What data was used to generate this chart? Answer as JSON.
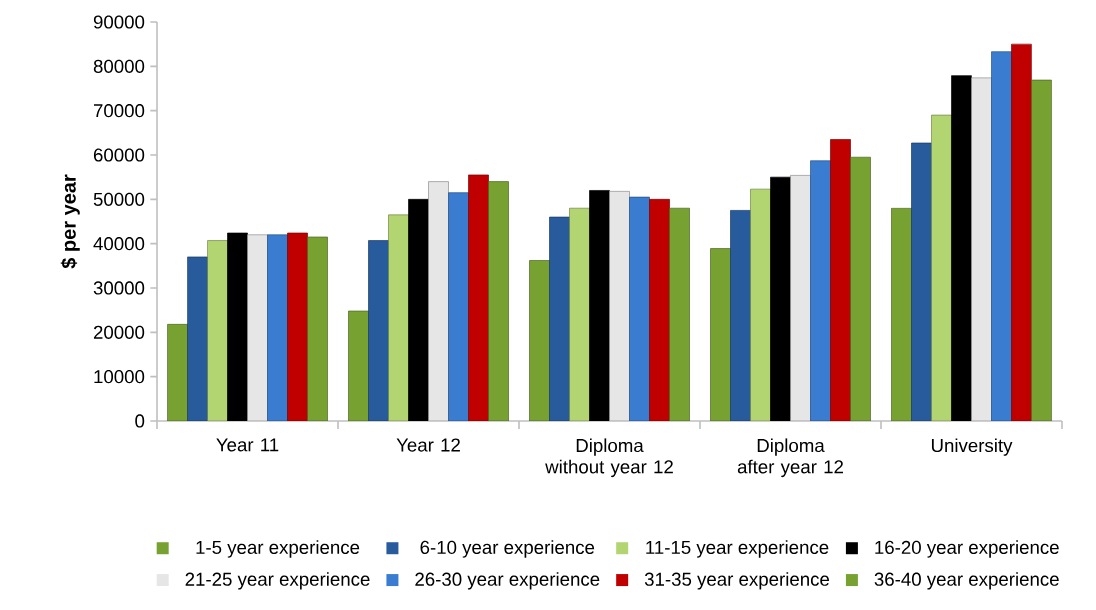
{
  "chart_data": {
    "type": "bar",
    "ylabel": "$ per year",
    "categories": [
      "Year 11",
      "Year 12",
      "Diploma without year 12",
      "Diploma after year 12",
      "University"
    ],
    "ylim": [
      0,
      90000
    ],
    "yticks": [
      0,
      10000,
      20000,
      30000,
      40000,
      50000,
      60000,
      70000,
      80000,
      90000
    ],
    "grid": false,
    "legend": "bottom",
    "series": [
      {
        "name": "1-5 year experience",
        "color": "#77a232",
        "values": [
          21800,
          24800,
          36200,
          38900,
          48000
        ]
      },
      {
        "name": "6-10 year experience",
        "color": "#275b9b",
        "values": [
          37000,
          40700,
          46000,
          47500,
          62700
        ]
      },
      {
        "name": "11-15 year experience",
        "color": "#b2d572",
        "values": [
          40700,
          46500,
          48000,
          52300,
          69000
        ]
      },
      {
        "name": "16-20 year experience",
        "color": "#000000",
        "values": [
          42400,
          50000,
          52000,
          55000,
          77900
        ]
      },
      {
        "name": "21-25 year experience",
        "color": "#e6e6e6",
        "values": [
          42000,
          54000,
          51800,
          55400,
          77400
        ]
      },
      {
        "name": "26-30 year experience",
        "color": "#3a7dd0",
        "values": [
          42000,
          51500,
          50500,
          58700,
          83300
        ]
      },
      {
        "name": "31-35 year experience",
        "color": "#c00000",
        "values": [
          42400,
          55500,
          50000,
          63500,
          85000
        ]
      },
      {
        "name": "36-40 year experience",
        "color": "#77a232",
        "values": [
          41500,
          54000,
          48000,
          59500,
          76900
        ]
      }
    ]
  }
}
